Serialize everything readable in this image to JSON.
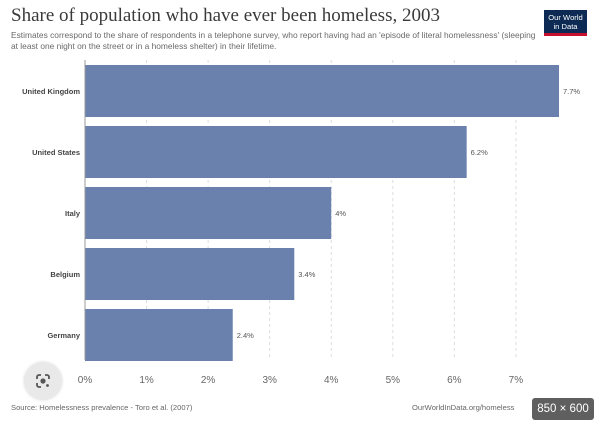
{
  "header": {
    "title": "Share of population who have ever been homeless, 2003",
    "subtitle": "Estimates correspond to the share of respondents in a telephone survey, who report having had an 'episode of literal homelessness' (sleeping at least one night on the street or in a homeless shelter) in their lifetime.",
    "logo_line1": "Our World",
    "logo_line2": "in Data"
  },
  "footer": {
    "source": "Source: Homelessness prevalence - Toro et al. (2007)",
    "site": "OurWorldInData.org/homeless"
  },
  "overlay": {
    "image_size": "850 × 600",
    "lens_icon": "google-lens-icon"
  },
  "colors": {
    "bar": "#6a80ad",
    "grid": "#dddddd",
    "logo_bg": "#0c2a53",
    "logo_accent": "#c8102e"
  },
  "chart_data": {
    "type": "bar",
    "orientation": "horizontal",
    "categories": [
      "United Kingdom",
      "United States",
      "Italy",
      "Belgium",
      "Germany"
    ],
    "values": [
      7.7,
      6.2,
      4,
      3.4,
      2.4
    ],
    "value_labels": [
      "7.7%",
      "6.2%",
      "4%",
      "3.4%",
      "2.4%"
    ],
    "xlim": [
      0,
      7.7
    ],
    "x_ticks": [
      0,
      1,
      2,
      3,
      4,
      5,
      6,
      7
    ],
    "x_tick_labels": [
      "0%",
      "1%",
      "2%",
      "3%",
      "4%",
      "5%",
      "6%",
      "7%"
    ],
    "grid": "vertical-dashed"
  }
}
